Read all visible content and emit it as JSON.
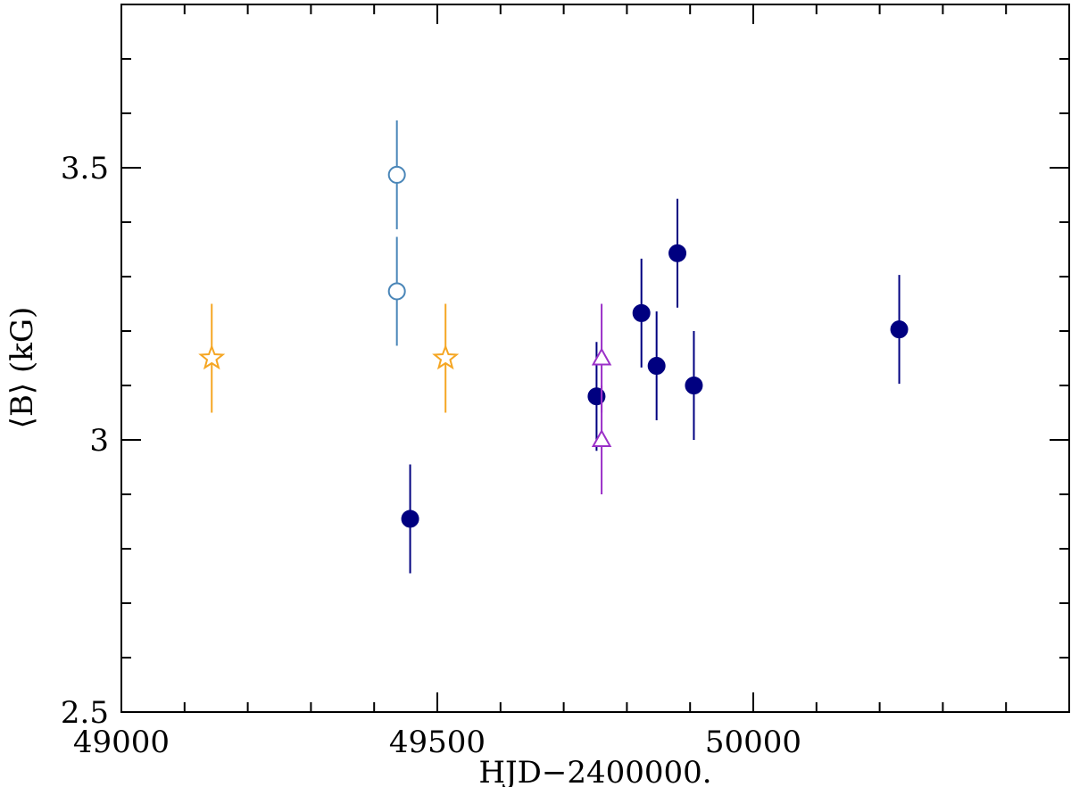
{
  "chart_data": {
    "type": "scatter",
    "title": "",
    "xlabel": "HJD−2400000.",
    "ylabel": "⟨B⟩ (kG)",
    "xlim": [
      49000,
      50500
    ],
    "ylim": [
      2.5,
      3.8
    ],
    "x_major_ticks": [
      49000,
      49500,
      50000
    ],
    "x_tick_labels": [
      "49000",
      "49500",
      "50000"
    ],
    "x_minor_step": 100,
    "y_major_ticks": [
      2.5,
      3.0,
      3.5
    ],
    "y_tick_labels": [
      "2.5",
      "3",
      "3.5"
    ],
    "y_minor_step": 0.1,
    "grid": false,
    "legend": "none",
    "series": [
      {
        "marker": "open-star",
        "color": "#f5a623",
        "points": [
          {
            "x": 49143,
            "y": 3.15,
            "err": 0.1
          },
          {
            "x": 49513,
            "y": 3.15,
            "err": 0.1
          }
        ]
      },
      {
        "marker": "open-circle",
        "color": "#4a86b8",
        "points": [
          {
            "x": 49436,
            "y": 3.487,
            "err": 0.1
          },
          {
            "x": 49436,
            "y": 3.273,
            "err": 0.1
          }
        ]
      },
      {
        "marker": "filled-circle",
        "color": "#000080",
        "points": [
          {
            "x": 49457,
            "y": 2.855,
            "err": 0.1
          },
          {
            "x": 49752,
            "y": 3.08,
            "err": 0.1
          },
          {
            "x": 49823,
            "y": 3.233,
            "err": 0.1
          },
          {
            "x": 49847,
            "y": 3.136,
            "err": 0.1
          },
          {
            "x": 49880,
            "y": 3.343,
            "err": 0.1
          },
          {
            "x": 49906,
            "y": 3.1,
            "err": 0.1
          },
          {
            "x": 50231,
            "y": 3.203,
            "err": 0.1
          }
        ]
      },
      {
        "marker": "open-triangle",
        "color": "#9b30c8",
        "points": [
          {
            "x": 49760,
            "y": 3.15,
            "err": 0.1
          },
          {
            "x": 49760,
            "y": 3.0,
            "err": 0.1
          }
        ]
      }
    ]
  }
}
